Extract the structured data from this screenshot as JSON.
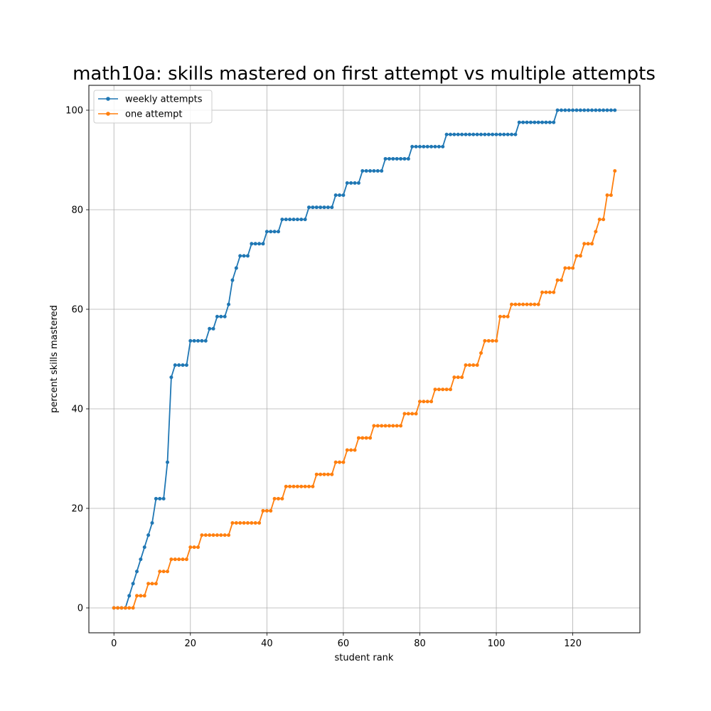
{
  "chart_data": {
    "type": "line",
    "title": "math10a: skills mastered on first attempt vs multiple attempts",
    "xlabel": "student rank",
    "ylabel": "percent skills mastered",
    "xlim": [
      -6.55,
      137.55
    ],
    "ylim": [
      -5,
      105
    ],
    "xticks": [
      0,
      20,
      40,
      60,
      80,
      100,
      120
    ],
    "yticks": [
      0,
      20,
      40,
      60,
      80,
      100
    ],
    "grid": true,
    "legend_position": "upper-left",
    "series": [
      {
        "name": "weekly attempts",
        "color": "#1f77b4",
        "marker": "circle",
        "values": [
          0,
          0,
          0,
          0,
          2.44,
          4.88,
          7.32,
          9.76,
          12.2,
          14.63,
          17.07,
          21.95,
          21.95,
          21.95,
          29.27,
          46.34,
          48.78,
          48.78,
          48.78,
          48.78,
          53.66,
          53.66,
          53.66,
          53.66,
          53.66,
          56.1,
          56.1,
          58.54,
          58.54,
          58.54,
          60.98,
          65.85,
          68.29,
          70.73,
          70.73,
          70.73,
          73.17,
          73.17,
          73.17,
          73.17,
          75.61,
          75.61,
          75.61,
          75.61,
          78.05,
          78.05,
          78.05,
          78.05,
          78.05,
          78.05,
          78.05,
          80.49,
          80.49,
          80.49,
          80.49,
          80.49,
          80.49,
          80.49,
          82.93,
          82.93,
          82.93,
          85.37,
          85.37,
          85.37,
          85.37,
          87.8,
          87.8,
          87.8,
          87.8,
          87.8,
          87.8,
          90.24,
          90.24,
          90.24,
          90.24,
          90.24,
          90.24,
          90.24,
          92.68,
          92.68,
          92.68,
          92.68,
          92.68,
          92.68,
          92.68,
          92.68,
          92.68,
          95.12,
          95.12,
          95.12,
          95.12,
          95.12,
          95.12,
          95.12,
          95.12,
          95.12,
          95.12,
          95.12,
          95.12,
          95.12,
          95.12,
          95.12,
          95.12,
          95.12,
          95.12,
          95.12,
          97.56,
          97.56,
          97.56,
          97.56,
          97.56,
          97.56,
          97.56,
          97.56,
          97.56,
          97.56,
          100,
          100,
          100,
          100,
          100,
          100,
          100,
          100,
          100,
          100,
          100,
          100,
          100,
          100,
          100,
          100
        ]
      },
      {
        "name": "one attempt",
        "color": "#ff7f0e",
        "marker": "circle",
        "values": [
          0,
          0,
          0,
          0,
          0,
          0,
          2.44,
          2.44,
          2.44,
          4.88,
          4.88,
          4.88,
          7.32,
          7.32,
          7.32,
          9.76,
          9.76,
          9.76,
          9.76,
          9.76,
          12.2,
          12.2,
          12.2,
          14.63,
          14.63,
          14.63,
          14.63,
          14.63,
          14.63,
          14.63,
          14.63,
          17.07,
          17.07,
          17.07,
          17.07,
          17.07,
          17.07,
          17.07,
          17.07,
          19.51,
          19.51,
          19.51,
          21.95,
          21.95,
          21.95,
          24.39,
          24.39,
          24.39,
          24.39,
          24.39,
          24.39,
          24.39,
          24.39,
          26.83,
          26.83,
          26.83,
          26.83,
          26.83,
          29.27,
          29.27,
          29.27,
          31.71,
          31.71,
          31.71,
          34.15,
          34.15,
          34.15,
          34.15,
          36.59,
          36.59,
          36.59,
          36.59,
          36.59,
          36.59,
          36.59,
          36.59,
          39.02,
          39.02,
          39.02,
          39.02,
          41.46,
          41.46,
          41.46,
          41.46,
          43.9,
          43.9,
          43.9,
          43.9,
          43.9,
          46.34,
          46.34,
          46.34,
          48.78,
          48.78,
          48.78,
          48.78,
          51.22,
          53.66,
          53.66,
          53.66,
          53.66,
          58.54,
          58.54,
          58.54,
          60.98,
          60.98,
          60.98,
          60.98,
          60.98,
          60.98,
          60.98,
          60.98,
          63.41,
          63.41,
          63.41,
          63.41,
          65.85,
          65.85,
          68.29,
          68.29,
          68.29,
          70.73,
          70.73,
          73.17,
          73.17,
          73.17,
          75.61,
          78.05,
          78.05,
          82.93,
          82.93,
          87.8
        ]
      }
    ]
  }
}
